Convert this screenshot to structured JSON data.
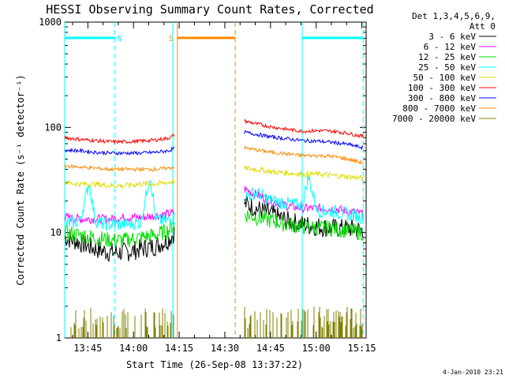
{
  "chart_data": {
    "type": "line",
    "title": "HESSI Observing Summary Count Rates, Corrected",
    "xlabel": "Start Time (26-Sep-08 13:37:22)",
    "ylabel": "Corrected Count Rate (s⁻¹ detector⁻¹)",
    "yscale": "log",
    "ylim": [
      1,
      1000
    ],
    "xlim_minutes": [
      0,
      99
    ],
    "ticks_y": [
      "1",
      "10",
      "100",
      "1000"
    ],
    "ticks_x": [
      {
        "label": "13:45",
        "minute": 7.6
      },
      {
        "label": "14:00",
        "minute": 22.6
      },
      {
        "label": "14:15",
        "minute": 37.6
      },
      {
        "label": "14:30",
        "minute": 52.6
      },
      {
        "label": "14:45",
        "minute": 67.6
      },
      {
        "label": "15:00",
        "minute": 82.6
      },
      {
        "label": "15:15",
        "minute": 97.6
      }
    ],
    "legend_header": [
      "Det 1,3,4,5,6,9,",
      "Att 0"
    ],
    "legend_position": "right",
    "footer": "4-Jan-2010 23:21",
    "data_gap_minutes": [
      36,
      59
    ],
    "series": [
      {
        "name": "3 - 6 keV",
        "color": "#000000",
        "x": [
          0,
          5,
          10,
          15,
          20,
          25,
          30,
          34,
          36
        ],
        "values": [
          9,
          8,
          7,
          6.5,
          6.5,
          7,
          7.5,
          8.5,
          10
        ],
        "x2": [
          59,
          63,
          68,
          73,
          78,
          83,
          88,
          93,
          98
        ],
        "values2": [
          19,
          17,
          15,
          13,
          12,
          11.5,
          11,
          11,
          10.5
        ]
      },
      {
        "name": "6 - 12 keV",
        "color": "#ff00ff",
        "x": [
          0,
          5,
          10,
          15,
          20,
          25,
          30,
          34,
          36
        ],
        "values": [
          14,
          13.5,
          13.5,
          13.5,
          14,
          14,
          14.5,
          15,
          15.5
        ],
        "x2": [
          59,
          63,
          68,
          73,
          78,
          83,
          88,
          93,
          98
        ],
        "values2": [
          26,
          23,
          20,
          18,
          17,
          17,
          17,
          16,
          15
        ]
      },
      {
        "name": "12 - 25 keV",
        "color": "#00dd00",
        "x": [
          0,
          5,
          10,
          15,
          20,
          25,
          30,
          34,
          36
        ],
        "values": [
          10,
          9.5,
          9,
          8.5,
          8.5,
          9,
          9.5,
          10.5,
          12
        ],
        "x2": [
          59,
          63,
          68,
          73,
          78,
          83,
          88,
          93,
          98
        ],
        "values2": [
          15,
          14,
          13,
          12,
          11.5,
          11,
          11,
          10.5,
          10
        ]
      },
      {
        "name": "25 - 50 keV",
        "color": "#00ffff",
        "x": [
          0,
          5,
          8,
          10,
          13,
          15,
          20,
          25,
          28,
          30,
          34,
          36
        ],
        "values": [
          12,
          13,
          30,
          13,
          12,
          12,
          12,
          12.5,
          35,
          13,
          13,
          14
        ],
        "x2": [
          59,
          63,
          68,
          73,
          78,
          80,
          83,
          88,
          93,
          98
        ],
        "values2": [
          22,
          24,
          20,
          19,
          18,
          34,
          16,
          16,
          15,
          14
        ]
      },
      {
        "name": "50 - 100 keV",
        "color": "#dddd00",
        "x": [
          0,
          5,
          10,
          15,
          20,
          25,
          30,
          34,
          36
        ],
        "values": [
          30,
          29,
          29,
          28,
          28,
          29,
          29,
          30,
          31
        ],
        "x2": [
          59,
          63,
          68,
          73,
          78,
          83,
          88,
          93,
          98
        ],
        "values2": [
          41,
          40,
          38,
          37,
          36,
          36,
          35,
          34,
          33
        ]
      },
      {
        "name": "100 - 300 keV",
        "color": "#ff0000",
        "x": [
          0,
          5,
          10,
          15,
          20,
          25,
          30,
          34,
          36
        ],
        "values": [
          80,
          77,
          75,
          73,
          73,
          74,
          76,
          79,
          84
        ],
        "x2": [
          59,
          63,
          68,
          73,
          78,
          83,
          88,
          93,
          98
        ],
        "values2": [
          115,
          108,
          101,
          96,
          92,
          93,
          92,
          88,
          82
        ]
      },
      {
        "name": "300 - 800 keV",
        "color": "#0000ff",
        "x": [
          0,
          5,
          10,
          15,
          20,
          25,
          30,
          34,
          36
        ],
        "values": [
          61,
          60,
          58,
          57,
          57,
          57,
          58,
          60,
          63
        ],
        "x2": [
          59,
          63,
          68,
          73,
          78,
          83,
          88,
          93,
          98
        ],
        "values2": [
          90,
          86,
          81,
          78,
          75,
          74,
          72,
          69,
          64
        ]
      },
      {
        "name": "800 - 7000 keV",
        "color": "#ff8800",
        "x": [
          0,
          5,
          10,
          15,
          20,
          25,
          30,
          34,
          36
        ],
        "values": [
          43,
          42,
          41,
          40,
          40,
          40,
          40,
          41,
          42
        ],
        "x2": [
          59,
          63,
          68,
          73,
          78,
          83,
          88,
          93,
          98
        ],
        "values2": [
          64,
          61,
          58,
          56,
          54,
          54,
          53,
          50,
          46
        ]
      },
      {
        "name": "7000 - 20000 keV",
        "color": "#808000",
        "x": [
          0,
          36
        ],
        "values": [
          1.5,
          1.5
        ],
        "x2": [
          59,
          98
        ],
        "values2": [
          1.5,
          1.5
        ]
      }
    ],
    "flag_bars": [
      {
        "label": "N",
        "color": "#00ffff",
        "x_start": 0,
        "x_end": 16.5
      },
      {
        "label": "S",
        "color": "#ff8800",
        "x_start": 37,
        "x_end": 56
      },
      {
        "label": "",
        "color": "#00ffff",
        "x_start": 78,
        "x_end": 98
      }
    ],
    "markers": [
      {
        "color": "#00ffff",
        "style": "solid",
        "minute": 0
      },
      {
        "color": "#00ffff",
        "style": "dashed",
        "minute": 16.5
      },
      {
        "color": "#00ffff",
        "style": "solid",
        "minute": 35.5
      },
      {
        "color": "#ff8800",
        "style": "solid",
        "minute": 37
      },
      {
        "color": "#ff8800",
        "style": "dashed",
        "minute": 56
      },
      {
        "color": "#00ffff",
        "style": "solid",
        "minute": 78
      },
      {
        "color": "#00ffff",
        "style": "dashed",
        "minute": 98
      }
    ]
  }
}
